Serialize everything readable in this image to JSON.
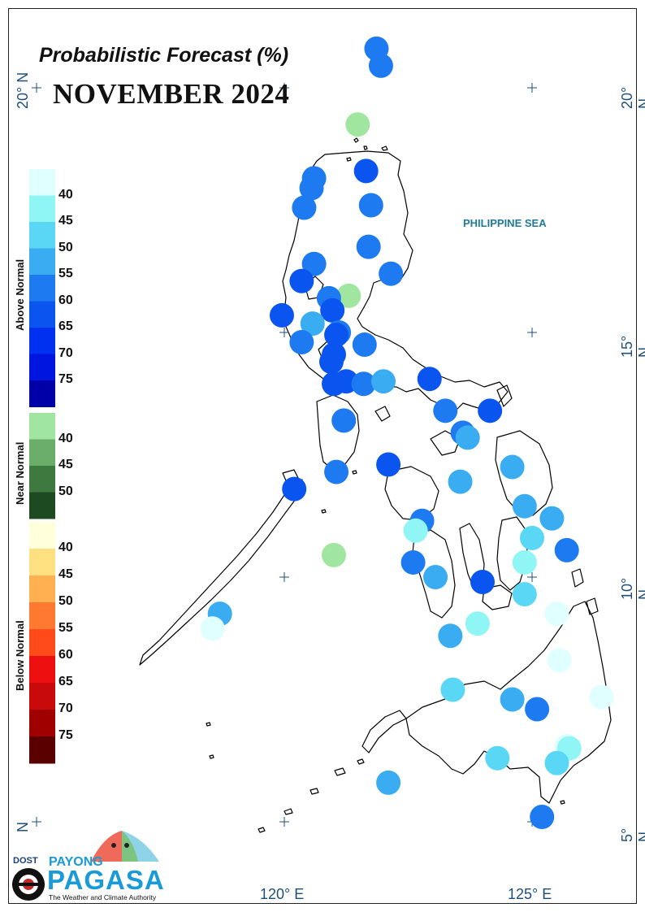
{
  "title_top": "Probabilistic Forecast (%)",
  "title_month": "NOVEMBER 2024",
  "sea_label": "PHILIPPINE SEA",
  "lat_labels": {
    "n20": "20° N",
    "n15": "15° N",
    "n10": "10° N",
    "n5": "5° N",
    "n_partial": "N"
  },
  "lon_labels": {
    "e120": "120° E",
    "e125": "125° E"
  },
  "legend": {
    "above": {
      "label": "Above Normal",
      "ticks": [
        "40",
        "45",
        "50",
        "55",
        "60",
        "65",
        "70",
        "75"
      ],
      "colors": [
        "#e0ffff",
        "#8ff5f5",
        "#5ad7f5",
        "#3aacf2",
        "#1e7af0",
        "#0a55f0",
        "#0030f0",
        "#0015e0",
        "#0000a8"
      ]
    },
    "near": {
      "label": "Near Normal",
      "ticks": [
        "40",
        "45",
        "50"
      ],
      "colors": [
        "#a0e6a0",
        "#6aae6a",
        "#3e7a40",
        "#1e4a22"
      ]
    },
    "below": {
      "label": "Below Normal",
      "ticks": [
        "40",
        "45",
        "50",
        "55",
        "60",
        "65",
        "70",
        "75"
      ],
      "colors": [
        "#ffffdc",
        "#ffe080",
        "#ffb050",
        "#ff7a30",
        "#ff4a1a",
        "#ee1010",
        "#c80a0a",
        "#a00000",
        "#5a0000"
      ]
    }
  },
  "stations": [
    {
      "lon": 121.86,
      "lat": 20.8,
      "cat": "above",
      "color": "#1e7af0"
    },
    {
      "lon": 121.95,
      "lat": 20.45,
      "cat": "above",
      "color": "#1e7af0"
    },
    {
      "lon": 121.48,
      "lat": 19.25,
      "cat": "near",
      "color": "#a0e6a0"
    },
    {
      "lon": 121.65,
      "lat": 18.3,
      "cat": "above",
      "color": "#0a55f0"
    },
    {
      "lon": 120.6,
      "lat": 18.15,
      "cat": "above",
      "color": "#1e7af0"
    },
    {
      "lon": 120.55,
      "lat": 17.95,
      "cat": "above",
      "color": "#1e7af0"
    },
    {
      "lon": 121.75,
      "lat": 17.6,
      "cat": "above",
      "color": "#1e7af0"
    },
    {
      "lon": 120.4,
      "lat": 17.55,
      "cat": "above",
      "color": "#1e7af0"
    },
    {
      "lon": 121.7,
      "lat": 16.75,
      "cat": "above",
      "color": "#1e7af0"
    },
    {
      "lon": 120.6,
      "lat": 16.4,
      "cat": "above",
      "color": "#1e7af0"
    },
    {
      "lon": 122.15,
      "lat": 16.2,
      "cat": "above",
      "color": "#1e7af0"
    },
    {
      "lon": 120.35,
      "lat": 16.05,
      "cat": "above",
      "color": "#0a55f0"
    },
    {
      "lon": 121.3,
      "lat": 15.75,
      "cat": "near",
      "color": "#a0e6a0"
    },
    {
      "lon": 120.9,
      "lat": 15.7,
      "cat": "above",
      "color": "#1e7af0"
    },
    {
      "lon": 120.97,
      "lat": 15.45,
      "cat": "above",
      "color": "#0a55f0"
    },
    {
      "lon": 119.95,
      "lat": 15.35,
      "cat": "above",
      "color": "#0a55f0"
    },
    {
      "lon": 120.57,
      "lat": 15.18,
      "cat": "above",
      "color": "#3aacf2"
    },
    {
      "lon": 121.1,
      "lat": 15.0,
      "cat": "above",
      "color": "#1e7af0"
    },
    {
      "lon": 121.05,
      "lat": 14.95,
      "cat": "above",
      "color": "#0a55f0"
    },
    {
      "lon": 120.35,
      "lat": 14.8,
      "cat": "above",
      "color": "#1e7af0"
    },
    {
      "lon": 121.62,
      "lat": 14.75,
      "cat": "above",
      "color": "#1e7af0"
    },
    {
      "lon": 121.0,
      "lat": 14.55,
      "cat": "above",
      "color": "#0a55f0"
    },
    {
      "lon": 120.95,
      "lat": 14.4,
      "cat": "above",
      "color": "#0a55f0"
    },
    {
      "lon": 121.25,
      "lat": 14.0,
      "cat": "above",
      "color": "#0a55f0"
    },
    {
      "lon": 121.0,
      "lat": 13.95,
      "cat": "above",
      "color": "#0a55f0"
    },
    {
      "lon": 121.6,
      "lat": 13.95,
      "cat": "above",
      "color": "#1e7af0"
    },
    {
      "lon": 122.0,
      "lat": 14.0,
      "cat": "above",
      "color": "#3aacf2"
    },
    {
      "lon": 122.93,
      "lat": 14.05,
      "cat": "above",
      "color": "#0a55f0"
    },
    {
      "lon": 123.25,
      "lat": 13.4,
      "cat": "above",
      "color": "#1e7af0"
    },
    {
      "lon": 124.15,
      "lat": 13.4,
      "cat": "above",
      "color": "#0a55f0"
    },
    {
      "lon": 121.2,
      "lat": 13.2,
      "cat": "above",
      "color": "#1e7af0"
    },
    {
      "lon": 123.6,
      "lat": 12.95,
      "cat": "above",
      "color": "#1e7af0"
    },
    {
      "lon": 123.7,
      "lat": 12.85,
      "cat": "above",
      "color": "#3aacf2"
    },
    {
      "lon": 122.1,
      "lat": 12.3,
      "cat": "above",
      "color": "#0a55f0"
    },
    {
      "lon": 124.6,
      "lat": 12.25,
      "cat": "above",
      "color": "#3aacf2"
    },
    {
      "lon": 121.05,
      "lat": 12.15,
      "cat": "above",
      "color": "#1e7af0"
    },
    {
      "lon": 123.55,
      "lat": 11.95,
      "cat": "above",
      "color": "#3aacf2"
    },
    {
      "lon": 120.2,
      "lat": 11.8,
      "cat": "above",
      "color": "#0a55f0"
    },
    {
      "lon": 124.85,
      "lat": 11.45,
      "cat": "above",
      "color": "#3aacf2"
    },
    {
      "lon": 125.4,
      "lat": 11.2,
      "cat": "above",
      "color": "#3aacf2"
    },
    {
      "lon": 122.78,
      "lat": 11.15,
      "cat": "above",
      "color": "#1e7af0"
    },
    {
      "lon": 122.65,
      "lat": 10.95,
      "cat": "above",
      "color": "#8ff5f5"
    },
    {
      "lon": 125.0,
      "lat": 10.8,
      "cat": "above",
      "color": "#5ad7f5"
    },
    {
      "lon": 125.7,
      "lat": 10.55,
      "cat": "above",
      "color": "#1e7af0"
    },
    {
      "lon": 121.0,
      "lat": 10.45,
      "cat": "near",
      "color": "#a0e6a0"
    },
    {
      "lon": 124.85,
      "lat": 10.3,
      "cat": "above",
      "color": "#8ff5f5"
    },
    {
      "lon": 122.6,
      "lat": 10.3,
      "cat": "above",
      "color": "#1e7af0"
    },
    {
      "lon": 123.05,
      "lat": 10.0,
      "cat": "above",
      "color": "#3aacf2"
    },
    {
      "lon": 124.0,
      "lat": 9.9,
      "cat": "above",
      "color": "#0a55f0"
    },
    {
      "lon": 124.85,
      "lat": 9.65,
      "cat": "above",
      "color": "#5ad7f5"
    },
    {
      "lon": 125.5,
      "lat": 9.25,
      "cat": "above",
      "color": "#e0ffff"
    },
    {
      "lon": 118.7,
      "lat": 9.25,
      "cat": "above",
      "color": "#3aacf2"
    },
    {
      "lon": 118.55,
      "lat": 8.95,
      "cat": "above",
      "color": "#e0ffff"
    },
    {
      "lon": 123.9,
      "lat": 9.05,
      "cat": "above",
      "color": "#8ff5f5"
    },
    {
      "lon": 123.35,
      "lat": 8.8,
      "cat": "above",
      "color": "#3aacf2"
    },
    {
      "lon": 125.55,
      "lat": 8.3,
      "cat": "above",
      "color": "#e0ffff"
    },
    {
      "lon": 123.4,
      "lat": 7.7,
      "cat": "above",
      "color": "#5ad7f5"
    },
    {
      "lon": 124.6,
      "lat": 7.5,
      "cat": "above",
      "color": "#3aacf2"
    },
    {
      "lon": 126.4,
      "lat": 7.55,
      "cat": "above",
      "color": "#e0ffff"
    },
    {
      "lon": 125.1,
      "lat": 7.3,
      "cat": "above",
      "color": "#1e7af0"
    },
    {
      "lon": 125.7,
      "lat": 6.55,
      "cat": "above",
      "color": "#e0ffff"
    },
    {
      "lon": 125.75,
      "lat": 6.5,
      "cat": "above",
      "color": "#8ff5f5"
    },
    {
      "lon": 124.3,
      "lat": 6.3,
      "cat": "above",
      "color": "#5ad7f5"
    },
    {
      "lon": 125.5,
      "lat": 6.2,
      "cat": "above",
      "color": "#5ad7f5"
    },
    {
      "lon": 122.1,
      "lat": 5.8,
      "cat": "above",
      "color": "#3aacf2"
    },
    {
      "lon": 125.2,
      "lat": 5.1,
      "cat": "above",
      "color": "#1e7af0"
    }
  ],
  "logo": {
    "dost": "DOST",
    "payong": "PAYONG",
    "pagasa": "PAGASA",
    "tagline": "The Weather and Climate Authority"
  }
}
